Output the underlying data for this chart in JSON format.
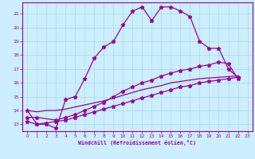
{
  "xlabel": "Windchill (Refroidissement éolien,°C)",
  "bg_color": "#cceeff",
  "grid_color": "#aadddd",
  "line_color": "#990099",
  "xlim": [
    -0.5,
    23.5
  ],
  "ylim": [
    12.5,
    21.8
  ],
  "yticks": [
    13,
    14,
    15,
    16,
    17,
    18,
    19,
    20,
    21
  ],
  "xticks": [
    0,
    1,
    2,
    3,
    4,
    5,
    6,
    7,
    8,
    9,
    10,
    11,
    12,
    13,
    14,
    15,
    16,
    17,
    18,
    19,
    20,
    21,
    22,
    23
  ],
  "line1_x": [
    0,
    1,
    2,
    3,
    4,
    5,
    6,
    7,
    8,
    9,
    10,
    11,
    12,
    13,
    14,
    15,
    16,
    17,
    18,
    19,
    20,
    21,
    22
  ],
  "line1_y": [
    14.0,
    13.0,
    13.0,
    12.7,
    14.8,
    15.0,
    16.3,
    17.8,
    18.6,
    19.0,
    20.2,
    21.2,
    21.5,
    20.5,
    21.5,
    21.5,
    21.2,
    20.8,
    19.0,
    18.5,
    18.5,
    17.0,
    16.4
  ],
  "line2_x": [
    0,
    1,
    3,
    4,
    5,
    6,
    7,
    8,
    9,
    10,
    11,
    12,
    13,
    14,
    15,
    16,
    17,
    18,
    19,
    20,
    21,
    22
  ],
  "line2_y": [
    13.5,
    13.5,
    13.3,
    13.5,
    13.7,
    14.0,
    14.3,
    14.6,
    15.0,
    15.4,
    15.7,
    16.0,
    16.2,
    16.5,
    16.7,
    16.9,
    17.0,
    17.2,
    17.3,
    17.5,
    17.4,
    16.3
  ],
  "line3_x": [
    0,
    1,
    2,
    3,
    4,
    5,
    6,
    7,
    8,
    9,
    10,
    11,
    12,
    13,
    14,
    15,
    16,
    17,
    18,
    19,
    20,
    21,
    22
  ],
  "line3_y": [
    13.2,
    13.0,
    13.1,
    13.2,
    13.3,
    13.5,
    13.7,
    13.9,
    14.1,
    14.3,
    14.5,
    14.7,
    14.9,
    15.1,
    15.3,
    15.5,
    15.7,
    15.8,
    16.0,
    16.1,
    16.2,
    16.3,
    16.4
  ],
  "line4_x": [
    0,
    1,
    2,
    3,
    4,
    5,
    6,
    7,
    8,
    9,
    10,
    11,
    12,
    13,
    14,
    15,
    16,
    17,
    18,
    19,
    20,
    21,
    22
  ],
  "line4_y": [
    14.0,
    13.9,
    14.0,
    14.0,
    14.1,
    14.25,
    14.4,
    14.55,
    14.7,
    14.9,
    15.1,
    15.3,
    15.5,
    15.65,
    15.8,
    16.0,
    16.1,
    16.2,
    16.3,
    16.35,
    16.4,
    16.45,
    16.5
  ]
}
